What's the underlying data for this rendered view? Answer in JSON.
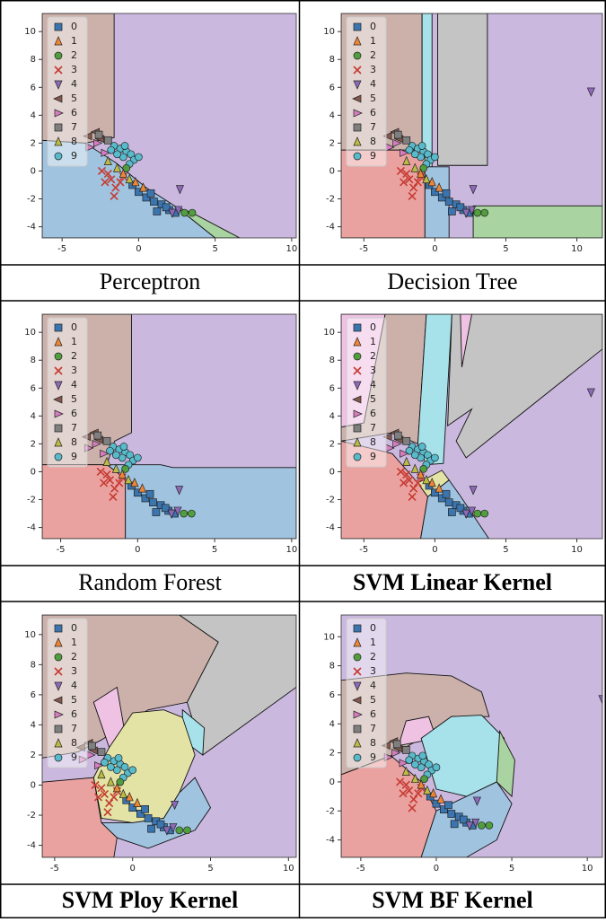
{
  "classes": [
    "0",
    "1",
    "2",
    "3",
    "4",
    "5",
    "6",
    "7",
    "8",
    "9"
  ],
  "class_colors": [
    "#3b75af",
    "#ef8636",
    "#519e3e",
    "#c53a32",
    "#8d69b8",
    "#84584e",
    "#d57dbf",
    "#7f7f7f",
    "#bcbc45",
    "#58bbcc"
  ],
  "region_colors": [
    "#a0c3e0",
    "#f5c9a3",
    "#a9d3a0",
    "#eaa2a0",
    "#cbb8de",
    "#cbb1aa",
    "#efc2e4",
    "#c4c4c4",
    "#e3e3a6",
    "#a7e1ea"
  ],
  "dataset": {
    "x": [
      -1.6,
      -1.2,
      -0.8,
      -0.5,
      -1,
      -1.4,
      -0.3,
      -0.6,
      0,
      -1.8,
      -0.9,
      -2.2,
      -1.8,
      -1.5,
      -2,
      -1.2,
      -1.6,
      -2.4,
      -1,
      0,
      0.5,
      1,
      1.5,
      2,
      2.4,
      0.8,
      1.8,
      -0.4,
      1.2,
      3,
      3.5,
      -0.8,
      2.2,
      2.7,
      11,
      2.6,
      -2.8,
      -3.3,
      -2.5,
      -3.2,
      -2.7,
      -2.2,
      -2.6,
      -2,
      -1.4,
      -0.6,
      -2,
      -1,
      -0.2,
      0.3
    ],
    "y": [
      1.8,
      1.6,
      1.4,
      1.2,
      1,
      1.2,
      0.8,
      0.5,
      1,
      1.5,
      1.8,
      -0.8,
      -0.6,
      -1.2,
      -0.2,
      -0.8,
      -1.8,
      0,
      -0.4,
      -1.5,
      -1.9,
      -2.2,
      -2.4,
      -2.8,
      -3,
      -1.6,
      -2.6,
      -1,
      -2.9,
      -3,
      -3,
      0.2,
      -3,
      -1.3,
      5.7,
      -2.8,
      2.8,
      2.5,
      2.3,
      1.7,
      2,
      1.3,
      2.6,
      2.2,
      0.2,
      -0.6,
      0.7,
      -0.2,
      -0.8,
      -1.2
    ],
    "class": [
      9,
      9,
      9,
      9,
      9,
      9,
      9,
      9,
      9,
      9,
      9,
      3,
      3,
      3,
      3,
      3,
      3,
      3,
      3,
      0,
      0,
      0,
      0,
      0,
      0,
      0,
      0,
      0,
      0,
      2,
      2,
      2,
      4,
      4,
      4,
      4,
      5,
      5,
      5,
      6,
      6,
      6,
      7,
      7,
      8,
      8,
      8,
      1,
      1,
      1
    ]
  },
  "chart_data": [
    {
      "type": "decision-regions",
      "caption": "Perceptron",
      "caption_bold": false,
      "xlim": [
        -6.3,
        10.3
      ],
      "ylim": [
        -4.8,
        11.3
      ],
      "xticks": [
        -5,
        0,
        5,
        10
      ],
      "yticks": [
        -4,
        -2,
        0,
        2,
        4,
        6,
        8,
        10
      ],
      "background_class": 4,
      "regions": [
        {
          "class": 5,
          "points": [
            [
              -6.3,
              11.3
            ],
            [
              -1.6,
              11.3
            ],
            [
              -1.6,
              2.4
            ],
            [
              -3.5,
              2.0
            ],
            [
              -6.3,
              2.2
            ]
          ]
        },
        {
          "class": 0,
          "points": [
            [
              -6.3,
              2.2
            ],
            [
              -3.5,
              2.0
            ],
            [
              -1.5,
              0.6
            ],
            [
              0.5,
              -1.2
            ],
            [
              2.5,
              -2.6
            ],
            [
              5,
              -4.8
            ],
            [
              -6.3,
              -4.8
            ]
          ]
        },
        {
          "class": 2,
          "points": [
            [
              2.5,
              -2.6
            ],
            [
              3.5,
              -3.0
            ],
            [
              6.6,
              -4.8
            ],
            [
              5,
              -4.8
            ]
          ]
        }
      ]
    },
    {
      "type": "decision-regions",
      "caption": "Decision Tree",
      "caption_bold": false,
      "xlim": [
        -6.6,
        11.8
      ],
      "ylim": [
        -4.8,
        11.3
      ],
      "xticks": [
        -5,
        0,
        5,
        10
      ],
      "yticks": [
        -4,
        -2,
        0,
        2,
        4,
        6,
        8,
        10
      ],
      "background_class": 4,
      "regions": [
        {
          "class": 5,
          "points": [
            [
              -6.6,
              11.3
            ],
            [
              -0.9,
              11.3
            ],
            [
              -0.9,
              1.5
            ],
            [
              -6.6,
              1.5
            ]
          ]
        },
        {
          "class": 9,
          "points": [
            [
              -0.9,
              11.3
            ],
            [
              -0.2,
              11.3
            ],
            [
              -0.2,
              0.3
            ],
            [
              -0.9,
              0.3
            ]
          ]
        },
        {
          "class": 7,
          "points": [
            [
              0.2,
              11.3
            ],
            [
              3.7,
              11.3
            ],
            [
              3.7,
              0.4
            ],
            [
              0.2,
              0.4
            ]
          ]
        },
        {
          "class": 3,
          "points": [
            [
              -6.6,
              1.5
            ],
            [
              -0.7,
              1.5
            ],
            [
              -0.7,
              -4.8
            ],
            [
              -6.6,
              -4.8
            ]
          ]
        },
        {
          "class": 0,
          "points": [
            [
              -0.7,
              0.3
            ],
            [
              1,
              0.3
            ],
            [
              1,
              -4.8
            ],
            [
              -0.7,
              -4.8
            ]
          ]
        },
        {
          "class": 2,
          "points": [
            [
              2.7,
              -2.5
            ],
            [
              11.8,
              -2.5
            ],
            [
              11.8,
              -4.8
            ],
            [
              2.7,
              -4.8
            ]
          ]
        }
      ]
    },
    {
      "type": "decision-regions",
      "caption": "Random Forest",
      "caption_bold": false,
      "xlim": [
        -6.2,
        10.3
      ],
      "ylim": [
        -4.8,
        11.3
      ],
      "xticks": [
        -5,
        0,
        5,
        10
      ],
      "yticks": [
        -4,
        -2,
        0,
        2,
        4,
        6,
        8,
        10
      ],
      "background_class": 4,
      "regions": [
        {
          "class": 5,
          "points": [
            [
              -6.2,
              11.3
            ],
            [
              -0.4,
              11.3
            ],
            [
              -0.4,
              2.8
            ],
            [
              -1.5,
              2.2
            ],
            [
              -2,
              0.5
            ],
            [
              -6.2,
              0.5
            ]
          ]
        },
        {
          "class": 0,
          "points": [
            [
              -2,
              0.5
            ],
            [
              1.5,
              0.5
            ],
            [
              2.3,
              0.3
            ],
            [
              10.3,
              0.3
            ],
            [
              10.3,
              -4.8
            ],
            [
              -0.8,
              -4.8
            ],
            [
              -0.8,
              -0.5
            ]
          ]
        },
        {
          "class": 3,
          "points": [
            [
              -6.2,
              0.5
            ],
            [
              -2,
              0.5
            ],
            [
              -0.8,
              -0.5
            ],
            [
              -0.8,
              -4.8
            ],
            [
              -6.2,
              -4.8
            ]
          ]
        }
      ]
    },
    {
      "type": "decision-regions",
      "caption": "SVM Linear Kernel",
      "caption_bold": true,
      "xlim": [
        -6.6,
        11.8
      ],
      "ylim": [
        -4.8,
        11.3
      ],
      "xticks": [
        -5,
        0,
        5,
        10
      ],
      "yticks": [
        -4,
        -2,
        0,
        2,
        4,
        6,
        8,
        10
      ],
      "background_class": 4,
      "regions": [
        {
          "class": 6,
          "points": [
            [
              -6.6,
              11.3
            ],
            [
              -3.5,
              11.3
            ],
            [
              -5,
              3.5
            ],
            [
              -6.6,
              3.2
            ]
          ]
        },
        {
          "class": 5,
          "points": [
            [
              -3.5,
              11.3
            ],
            [
              -0.6,
              11.3
            ],
            [
              -1.2,
              2
            ],
            [
              -3,
              2.8
            ],
            [
              -6.6,
              2.2
            ],
            [
              -6.6,
              3.2
            ],
            [
              -5,
              3.5
            ]
          ]
        },
        {
          "class": 9,
          "points": [
            [
              -0.6,
              11.3
            ],
            [
              1.2,
              11.3
            ],
            [
              0.6,
              0.6
            ],
            [
              -0.6,
              0.5
            ],
            [
              -1.2,
              2
            ]
          ]
        },
        {
          "class": 7,
          "points": [
            [
              1.2,
              11.3
            ],
            [
              11.8,
              11.3
            ],
            [
              11.8,
              8.8
            ],
            [
              2.2,
              1
            ],
            [
              1.5,
              2.2
            ],
            [
              2.6,
              4.5
            ],
            [
              0.9,
              3.3
            ]
          ]
        },
        {
          "class": 6,
          "points": [
            [
              1.8,
              11.3
            ],
            [
              2.6,
              11.3
            ],
            [
              1.9,
              7.5
            ]
          ]
        },
        {
          "class": 3,
          "points": [
            [
              -6.6,
              2.2
            ],
            [
              -3,
              1.3
            ],
            [
              -1.2,
              -0.8
            ],
            [
              -0.5,
              -1.8
            ],
            [
              -1,
              -4.8
            ],
            [
              -6.6,
              -4.8
            ]
          ]
        },
        {
          "class": 8,
          "points": [
            [
              -1.2,
              -0.8
            ],
            [
              0.5,
              0.1
            ],
            [
              1,
              -0.6
            ],
            [
              -0.5,
              -1.8
            ]
          ]
        },
        {
          "class": 0,
          "points": [
            [
              -0.5,
              -1.8
            ],
            [
              1,
              -0.6
            ],
            [
              1.7,
              -1.6
            ],
            [
              3.8,
              -4.8
            ],
            [
              -1,
              -4.8
            ]
          ]
        }
      ]
    },
    {
      "type": "decision-regions",
      "caption": "SVM Ploy Kernel",
      "caption_bold": true,
      "xlim": [
        -5.8,
        10.5
      ],
      "ylim": [
        -4.8,
        11.3
      ],
      "xticks": [
        -5,
        0,
        5,
        10
      ],
      "yticks": [
        -4,
        -2,
        0,
        2,
        4,
        6,
        8,
        10
      ],
      "background_class": 4,
      "regions": [
        {
          "class": 5,
          "points": [
            [
              -5.8,
              11.3
            ],
            [
              3,
              11.3
            ],
            [
              5.5,
              9.5
            ],
            [
              3.5,
              5.5
            ],
            [
              1,
              5
            ],
            [
              -2,
              3
            ],
            [
              -3.5,
              2.2
            ],
            [
              -5.8,
              1.8
            ]
          ]
        },
        {
          "class": 7,
          "points": [
            [
              3,
              11.3
            ],
            [
              10.5,
              11.3
            ],
            [
              10.5,
              6.5
            ],
            [
              4.5,
              2
            ],
            [
              3.8,
              4.5
            ],
            [
              3.5,
              5.5
            ],
            [
              5.5,
              9.5
            ]
          ]
        },
        {
          "class": 6,
          "points": [
            [
              -2.5,
              5.5
            ],
            [
              -1,
              6.5
            ],
            [
              -0.5,
              3.5
            ],
            [
              -1.5,
              2.5
            ]
          ]
        },
        {
          "class": 9,
          "points": [
            [
              3.2,
              5
            ],
            [
              4.6,
              3.8
            ],
            [
              4.5,
              2
            ],
            [
              3.2,
              3
            ]
          ]
        },
        {
          "class": 8,
          "points": [
            [
              -1.5,
              2.5
            ],
            [
              0,
              4.8
            ],
            [
              2,
              5
            ],
            [
              3.2,
              4.5
            ],
            [
              4,
              2
            ],
            [
              3,
              -0.5
            ],
            [
              2,
              -2.2
            ],
            [
              0,
              -2.5
            ],
            [
              -2,
              -2.2
            ],
            [
              -2.5,
              0.5
            ]
          ]
        },
        {
          "class": 0,
          "points": [
            [
              2,
              -2.2
            ],
            [
              3,
              -0.5
            ],
            [
              4,
              0.5
            ],
            [
              5,
              -1.5
            ],
            [
              4,
              -3
            ],
            [
              1,
              -4.2
            ],
            [
              -1,
              -3.5
            ],
            [
              -2,
              -2.5
            ],
            [
              0,
              -2.5
            ]
          ]
        },
        {
          "class": 3,
          "points": [
            [
              -5.8,
              0.2
            ],
            [
              -2.5,
              0.5
            ],
            [
              -2,
              -2.5
            ],
            [
              -1,
              -3.5
            ],
            [
              -1.2,
              -4.8
            ],
            [
              -5.8,
              -4.8
            ]
          ]
        }
      ]
    },
    {
      "type": "decision-regions",
      "caption": "SVM BF Kernel",
      "caption_bold": true,
      "xlim": [
        -6.3,
        11
      ],
      "ylim": [
        -5.2,
        11.5
      ],
      "xticks": [
        -5,
        0,
        5,
        10
      ],
      "yticks": [
        -4,
        -2,
        0,
        2,
        4,
        6,
        8,
        10
      ],
      "background_class": 4,
      "regions": [
        {
          "class": 5,
          "points": [
            [
              -6.3,
              7
            ],
            [
              -2,
              7.5
            ],
            [
              1,
              7.3
            ],
            [
              3,
              6.2
            ],
            [
              3.5,
              4.5
            ],
            [
              1,
              4.5
            ],
            [
              -1,
              3
            ],
            [
              -3,
              1.8
            ],
            [
              -6.3,
              0.5
            ]
          ]
        },
        {
          "class": 6,
          "points": [
            [
              -2.5,
              2.5
            ],
            [
              -2,
              4.2
            ],
            [
              -0.5,
              4.5
            ],
            [
              0,
              3
            ]
          ]
        },
        {
          "class": 9,
          "points": [
            [
              -1,
              3
            ],
            [
              1,
              4.5
            ],
            [
              3,
              4.6
            ],
            [
              4.5,
              3
            ],
            [
              4,
              0
            ],
            [
              2,
              -1
            ],
            [
              0,
              -0.5
            ]
          ]
        },
        {
          "class": 2,
          "points": [
            [
              4.2,
              3.5
            ],
            [
              5.2,
              1.5
            ],
            [
              5,
              -1
            ],
            [
              4,
              0
            ]
          ]
        },
        {
          "class": 3,
          "points": [
            [
              -6.3,
              0.5
            ],
            [
              -3,
              1.8
            ],
            [
              -1,
              0
            ],
            [
              0,
              -2
            ],
            [
              -1,
              -5.2
            ],
            [
              -6.3,
              -5.2
            ]
          ]
        },
        {
          "class": 0,
          "points": [
            [
              0,
              -2
            ],
            [
              2,
              -1
            ],
            [
              4,
              0
            ],
            [
              5,
              -1.5
            ],
            [
              4,
              -4
            ],
            [
              2,
              -5.2
            ],
            [
              -1,
              -5.2
            ]
          ]
        }
      ]
    }
  ]
}
